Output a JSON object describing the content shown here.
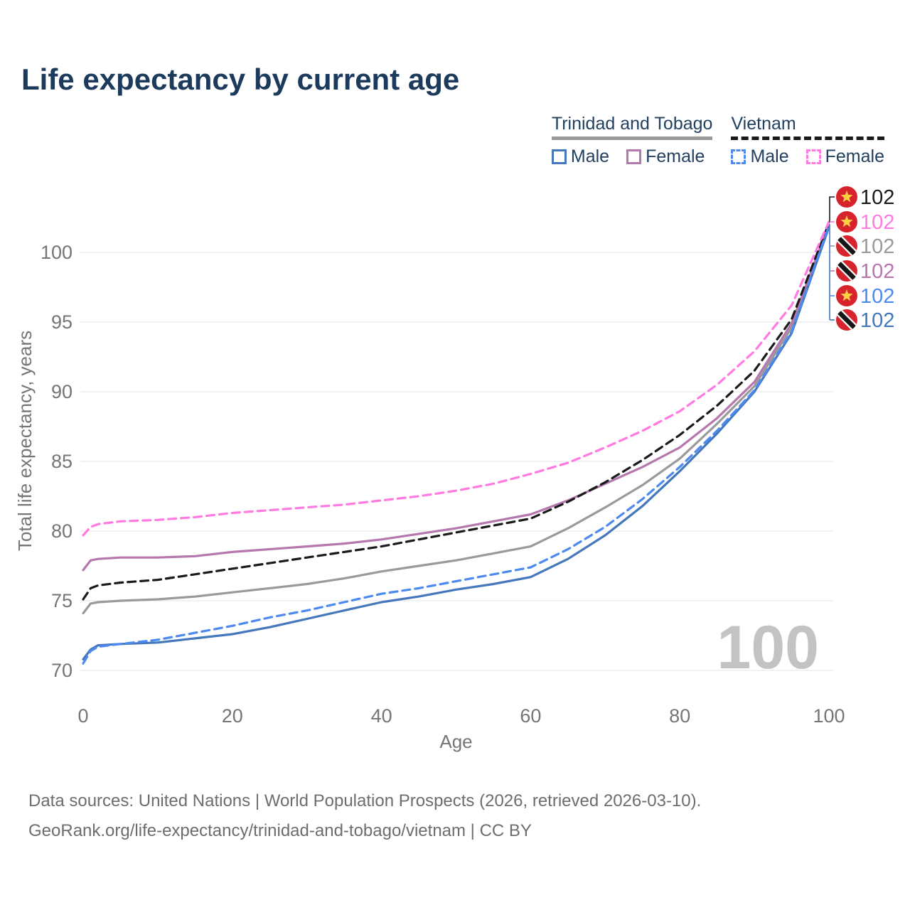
{
  "title": "Life expectancy by current age",
  "legend": {
    "groups": [
      {
        "label": "Trinidad and Tobago",
        "line_style": "solid",
        "items": [
          {
            "label": "Male",
            "series": 5
          },
          {
            "label": "Female",
            "series": 3
          }
        ]
      },
      {
        "label": "Vietnam",
        "line_style": "dashed",
        "items": [
          {
            "label": "Male",
            "series": 4
          },
          {
            "label": "Female",
            "series": 1
          }
        ]
      }
    ]
  },
  "chart_data": {
    "type": "line",
    "title": "Life expectancy by current age",
    "xlabel": "Age",
    "ylabel": "Total life expectancy, years",
    "x_ticks": [
      0,
      20,
      40,
      60,
      80,
      100
    ],
    "y_ticks": [
      70,
      75,
      80,
      85,
      90,
      95,
      100
    ],
    "xlim": [
      0,
      100
    ],
    "ylim": [
      69,
      103.5
    ],
    "grid": "horizontal",
    "legend_position": "top-right",
    "watermark": "100",
    "x": [
      0,
      1,
      2,
      5,
      10,
      15,
      20,
      25,
      30,
      35,
      40,
      45,
      50,
      55,
      60,
      65,
      70,
      75,
      80,
      85,
      90,
      95,
      100
    ],
    "series": [
      {
        "name": "Vietnam Both sexes",
        "country": "Vietnam",
        "flag": "vietnam-flag",
        "color": "#1a1a1a",
        "dashed": true,
        "end_label": "102",
        "values": [
          75.1,
          75.9,
          76.1,
          76.3,
          76.5,
          76.9,
          77.3,
          77.7,
          78.1,
          78.5,
          78.9,
          79.4,
          79.9,
          80.4,
          80.9,
          82.1,
          83.5,
          85.1,
          86.9,
          89.0,
          91.5,
          95.2,
          102.1
        ]
      },
      {
        "name": "Vietnam Female",
        "country": "Vietnam",
        "flag": "vietnam-flag",
        "color": "#ff7ae1",
        "dashed": true,
        "end_label": "102",
        "values": [
          79.7,
          80.3,
          80.5,
          80.7,
          80.8,
          81.0,
          81.3,
          81.5,
          81.7,
          81.9,
          82.2,
          82.5,
          82.9,
          83.4,
          84.1,
          84.9,
          86.0,
          87.2,
          88.6,
          90.5,
          92.9,
          96.2,
          102.2
        ]
      },
      {
        "name": "Trinidad and Tobago Both sexes",
        "country": "Trinidad and Tobago",
        "flag": "trinidad-and-tobago-flag",
        "color": "#9a9a9a",
        "dashed": false,
        "end_label": "102",
        "values": [
          74.1,
          74.8,
          74.9,
          75.0,
          75.1,
          75.3,
          75.6,
          75.9,
          76.2,
          76.6,
          77.1,
          77.5,
          77.9,
          78.4,
          78.9,
          80.2,
          81.7,
          83.3,
          85.2,
          87.7,
          90.4,
          94.6,
          102.0
        ]
      },
      {
        "name": "Trinidad and Tobago Female",
        "country": "Trinidad and Tobago",
        "flag": "trinidad-and-tobago-flag",
        "color": "#b577ae",
        "dashed": false,
        "end_label": "102",
        "values": [
          77.2,
          77.9,
          78.0,
          78.1,
          78.1,
          78.2,
          78.5,
          78.7,
          78.9,
          79.1,
          79.4,
          79.8,
          80.2,
          80.7,
          81.2,
          82.2,
          83.4,
          84.6,
          86.0,
          88.1,
          90.7,
          94.9,
          102.0
        ]
      },
      {
        "name": "Vietnam Male",
        "country": "Vietnam",
        "flag": "vietnam-flag",
        "color": "#4d8af0",
        "dashed": true,
        "end_label": "102",
        "values": [
          70.5,
          71.4,
          71.7,
          71.9,
          72.2,
          72.7,
          73.2,
          73.8,
          74.3,
          74.9,
          75.5,
          75.9,
          76.4,
          76.9,
          77.4,
          78.7,
          80.3,
          82.3,
          84.6,
          87.2,
          90.1,
          94.3,
          101.9
        ]
      },
      {
        "name": "Trinidad and Tobago Male",
        "country": "Trinidad and Tobago",
        "flag": "trinidad-and-tobago-flag",
        "color": "#4477bb",
        "dashed": false,
        "end_label": "102",
        "values": [
          70.8,
          71.5,
          71.8,
          71.9,
          72.0,
          72.3,
          72.6,
          73.1,
          73.7,
          74.3,
          74.9,
          75.3,
          75.8,
          76.2,
          76.7,
          78.0,
          79.7,
          81.8,
          84.3,
          87.0,
          90.0,
          94.2,
          101.8
        ]
      }
    ]
  },
  "footer": {
    "line1": "Data sources: United Nations | World Population Prospects (2026, retrieved 2026-03-10).",
    "line2": "GeoRank.org/life-expectancy/trinidad-and-tobago/vietnam | CC BY"
  }
}
